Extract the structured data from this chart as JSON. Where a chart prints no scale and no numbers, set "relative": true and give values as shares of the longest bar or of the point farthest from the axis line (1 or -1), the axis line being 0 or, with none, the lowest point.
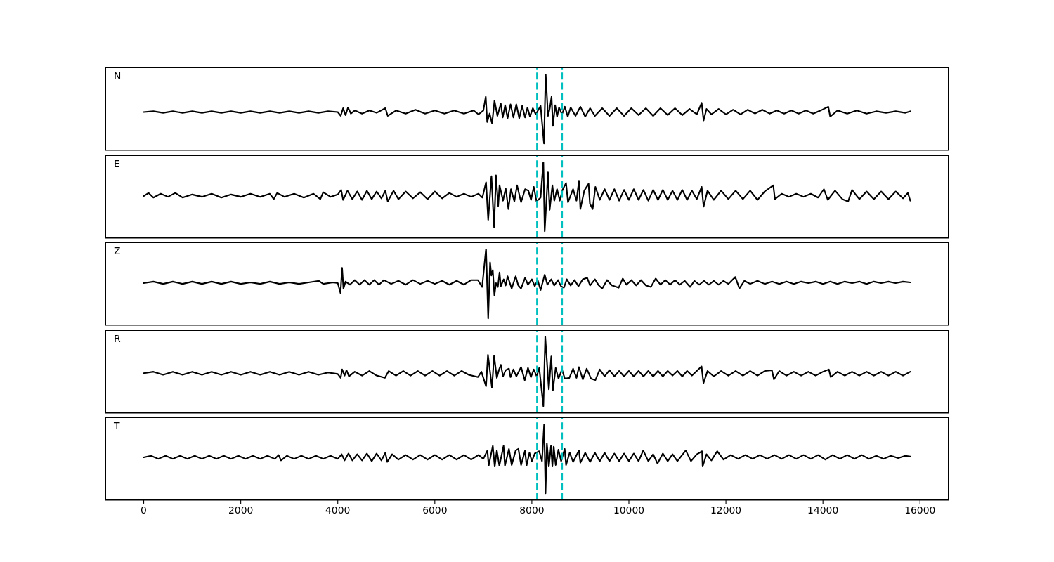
{
  "chart_data": [
    {
      "type": "line",
      "relative": true,
      "annotations": [
        "N"
      ],
      "xlim": [
        -790,
        16590
      ],
      "xticks": [
        0,
        2000,
        4000,
        6000,
        8000,
        10000,
        12000,
        14000,
        16000
      ],
      "tick_labels": false,
      "ref_lines": [
        {
          "axis": "x",
          "value": 8110,
          "color": "#00bfbf",
          "line_style": "dashed"
        },
        {
          "axis": "x",
          "value": 8620,
          "color": "#00bfbf",
          "line_style": "dashed"
        }
      ],
      "x": [
        0,
        200,
        400,
        600,
        800,
        1000,
        1200,
        1400,
        1600,
        1800,
        2000,
        2200,
        2400,
        2600,
        2800,
        3000,
        3200,
        3400,
        3600,
        3800,
        4000,
        4060,
        4110,
        4160,
        4210,
        4270,
        4350,
        4500,
        4650,
        4800,
        4980,
        5030,
        5200,
        5400,
        5600,
        5800,
        6000,
        6200,
        6400,
        6600,
        6800,
        6900,
        7000,
        7050,
        7080,
        7130,
        7180,
        7230,
        7290,
        7360,
        7400,
        7450,
        7500,
        7560,
        7620,
        7680,
        7740,
        7800,
        7860,
        7910,
        7960,
        8020,
        8080,
        8180,
        8250,
        8285,
        8333,
        8370,
        8406,
        8434,
        8480,
        8520,
        8560,
        8620,
        8680,
        8740,
        8800,
        8900,
        9000,
        9100,
        9200,
        9300,
        9450,
        9600,
        9750,
        9900,
        10050,
        10200,
        10350,
        10500,
        10650,
        10800,
        10950,
        11100,
        11250,
        11400,
        11500,
        11540,
        11600,
        11700,
        11850,
        12000,
        12150,
        12300,
        12450,
        12600,
        12750,
        12900,
        13050,
        13200,
        13350,
        13500,
        13650,
        13800,
        13950,
        14110,
        14150,
        14300,
        14500,
        14700,
        14900,
        15100,
        15300,
        15500,
        15700,
        15800
      ],
      "series": [
        {
          "color": "#000000",
          "values": [
            0.5,
            0.51,
            0.49,
            0.51,
            0.49,
            0.51,
            0.49,
            0.51,
            0.49,
            0.51,
            0.49,
            0.51,
            0.49,
            0.51,
            0.49,
            0.51,
            0.49,
            0.51,
            0.49,
            0.51,
            0.5,
            0.45,
            0.55,
            0.46,
            0.56,
            0.48,
            0.52,
            0.48,
            0.52,
            0.49,
            0.55,
            0.45,
            0.52,
            0.48,
            0.53,
            0.48,
            0.52,
            0.48,
            0.52,
            0.48,
            0.52,
            0.47,
            0.52,
            0.7,
            0.37,
            0.48,
            0.35,
            0.65,
            0.45,
            0.61,
            0.43,
            0.59,
            0.42,
            0.6,
            0.43,
            0.6,
            0.42,
            0.58,
            0.43,
            0.56,
            0.44,
            0.55,
            0.47,
            0.58,
            0.09,
            1,
            0.45,
            0.55,
            0.7,
            0.32,
            0.59,
            0.44,
            0.56,
            0.47,
            0.57,
            0.44,
            0.56,
            0.45,
            0.57,
            0.44,
            0.55,
            0.45,
            0.55,
            0.45,
            0.55,
            0.45,
            0.55,
            0.46,
            0.55,
            0.45,
            0.55,
            0.46,
            0.55,
            0.46,
            0.54,
            0.47,
            0.62,
            0.39,
            0.54,
            0.47,
            0.54,
            0.47,
            0.53,
            0.47,
            0.53,
            0.48,
            0.53,
            0.48,
            0.52,
            0.48,
            0.52,
            0.48,
            0.52,
            0.48,
            0.52,
            0.57,
            0.44,
            0.52,
            0.48,
            0.52,
            0.48,
            0.51,
            0.49,
            0.51,
            0.49,
            0.51
          ]
        }
      ]
    },
    {
      "type": "line",
      "relative": true,
      "annotations": [
        "E"
      ],
      "xlim": [
        -790,
        16590
      ],
      "xticks": [
        0,
        2000,
        4000,
        6000,
        8000,
        10000,
        12000,
        14000,
        16000
      ],
      "tick_labels": false,
      "ref_lines": [
        {
          "axis": "x",
          "value": 8110,
          "color": "#00bfbf",
          "line_style": "dashed"
        },
        {
          "axis": "x",
          "value": 8620,
          "color": "#00bfbf",
          "line_style": "dashed"
        }
      ],
      "x": [
        0,
        100,
        200,
        350,
        500,
        650,
        800,
        1000,
        1200,
        1400,
        1600,
        1800,
        2000,
        2200,
        2400,
        2600,
        2680,
        2750,
        2900,
        3100,
        3300,
        3500,
        3640,
        3700,
        3850,
        4000,
        4070,
        4110,
        4200,
        4300,
        4400,
        4500,
        4600,
        4700,
        4800,
        4900,
        4980,
        5030,
        5150,
        5250,
        5400,
        5550,
        5700,
        5850,
        6000,
        6150,
        6300,
        6450,
        6600,
        6750,
        6900,
        6980,
        7056,
        7100,
        7167,
        7222,
        7261,
        7306,
        7334,
        7406,
        7461,
        7517,
        7570,
        7640,
        7695,
        7778,
        7861,
        7927,
        7983,
        8040,
        8096,
        8180,
        8237,
        8265,
        8333,
        8367,
        8423,
        8463,
        8519,
        8576,
        8632,
        8705,
        8745,
        8850,
        8920,
        8971,
        9000,
        9080,
        9169,
        9197,
        9253,
        9310,
        9400,
        9500,
        9600,
        9700,
        9800,
        9900,
        10000,
        10100,
        10200,
        10300,
        10400,
        10500,
        10600,
        10700,
        10800,
        10900,
        11000,
        11100,
        11200,
        11300,
        11400,
        11500,
        11540,
        11620,
        11750,
        11900,
        12050,
        12200,
        12350,
        12500,
        12650,
        12800,
        12976,
        13010,
        13150,
        13300,
        13450,
        13600,
        13750,
        13900,
        14020,
        14100,
        14250,
        14400,
        14520,
        14600,
        14750,
        14900,
        15050,
        15200,
        15350,
        15500,
        15650,
        15750,
        15800
      ],
      "series": [
        {
          "color": "#000000",
          "values": [
            0.55,
            0.59,
            0.53,
            0.58,
            0.54,
            0.59,
            0.53,
            0.57,
            0.54,
            0.58,
            0.53,
            0.57,
            0.54,
            0.58,
            0.54,
            0.58,
            0.51,
            0.59,
            0.54,
            0.58,
            0.53,
            0.58,
            0.51,
            0.6,
            0.54,
            0.57,
            0.63,
            0.5,
            0.62,
            0.51,
            0.61,
            0.5,
            0.62,
            0.51,
            0.61,
            0.52,
            0.62,
            0.48,
            0.62,
            0.51,
            0.61,
            0.52,
            0.6,
            0.51,
            0.61,
            0.52,
            0.59,
            0.54,
            0.58,
            0.54,
            0.58,
            0.53,
            0.73,
            0.24,
            0.81,
            0.14,
            0.82,
            0.42,
            0.69,
            0.49,
            0.65,
            0.38,
            0.64,
            0.48,
            0.69,
            0.47,
            0.64,
            0.62,
            0.5,
            0.67,
            0.48,
            0.53,
            1,
            0.09,
            0.86,
            0.37,
            0.69,
            0.49,
            0.64,
            0.49,
            0.63,
            0.72,
            0.47,
            0.64,
            0.49,
            0.75,
            0.38,
            0.62,
            0.71,
            0.45,
            0.38,
            0.67,
            0.5,
            0.64,
            0.5,
            0.64,
            0.49,
            0.63,
            0.5,
            0.64,
            0.5,
            0.63,
            0.49,
            0.63,
            0.5,
            0.63,
            0.5,
            0.62,
            0.5,
            0.63,
            0.5,
            0.62,
            0.51,
            0.67,
            0.41,
            0.62,
            0.5,
            0.62,
            0.51,
            0.62,
            0.51,
            0.62,
            0.5,
            0.61,
            0.69,
            0.51,
            0.58,
            0.54,
            0.58,
            0.54,
            0.58,
            0.53,
            0.64,
            0.5,
            0.62,
            0.51,
            0.48,
            0.63,
            0.51,
            0.61,
            0.51,
            0.61,
            0.51,
            0.61,
            0.52,
            0.59,
            0.49
          ]
        }
      ]
    },
    {
      "type": "line",
      "relative": true,
      "annotations": [
        "Z"
      ],
      "xlim": [
        -790,
        16590
      ],
      "xticks": [
        0,
        2000,
        4000,
        6000,
        8000,
        10000,
        12000,
        14000,
        16000
      ],
      "tick_labels": false,
      "ref_lines": [
        {
          "axis": "x",
          "value": 8110,
          "color": "#00bfbf",
          "line_style": "dashed"
        },
        {
          "axis": "x",
          "value": 8620,
          "color": "#00bfbf",
          "line_style": "dashed"
        }
      ],
      "x": [
        0,
        200,
        400,
        600,
        800,
        1000,
        1200,
        1400,
        1600,
        1800,
        2000,
        2200,
        2400,
        2600,
        2800,
        3000,
        3200,
        3400,
        3611,
        3700,
        3900,
        4000,
        4056,
        4089,
        4117,
        4160,
        4250,
        4350,
        4450,
        4550,
        4650,
        4750,
        4850,
        4950,
        5100,
        5250,
        5400,
        5550,
        5700,
        5850,
        6000,
        6150,
        6300,
        6450,
        6600,
        6750,
        6889,
        6975,
        7056,
        7100,
        7139,
        7165,
        7195,
        7228,
        7261,
        7300,
        7334,
        7361,
        7420,
        7460,
        7500,
        7584,
        7667,
        7720,
        7778,
        7861,
        7920,
        8000,
        8060,
        8120,
        8180,
        8265,
        8320,
        8400,
        8460,
        8540,
        8600,
        8660,
        8720,
        8800,
        8880,
        8960,
        9050,
        9140,
        9200,
        9300,
        9380,
        9450,
        9550,
        9650,
        9789,
        9874,
        9950,
        10050,
        10150,
        10250,
        10350,
        10452,
        10552,
        10650,
        10750,
        10850,
        10950,
        11050,
        11150,
        11262,
        11350,
        11450,
        11550,
        11650,
        11750,
        11850,
        11950,
        12050,
        12193,
        12278,
        12380,
        12500,
        12650,
        12800,
        12950,
        13100,
        13250,
        13400,
        13550,
        13700,
        13850,
        14000,
        14150,
        14300,
        14450,
        14600,
        14750,
        14900,
        15050,
        15200,
        15350,
        15500,
        15650,
        15800
      ],
      "series": [
        {
          "color": "#000000",
          "values": [
            0.55,
            0.57,
            0.54,
            0.57,
            0.54,
            0.57,
            0.54,
            0.57,
            0.54,
            0.57,
            0.54,
            0.56,
            0.54,
            0.57,
            0.54,
            0.56,
            0.54,
            0.56,
            0.58,
            0.54,
            0.56,
            0.55,
            0.42,
            0.75,
            0.48,
            0.57,
            0.53,
            0.59,
            0.53,
            0.59,
            0.53,
            0.59,
            0.53,
            0.59,
            0.54,
            0.58,
            0.53,
            0.59,
            0.54,
            0.58,
            0.54,
            0.58,
            0.53,
            0.58,
            0.53,
            0.59,
            0.59,
            0.5,
            1,
            0.09,
            0.82,
            0.65,
            0.72,
            0.39,
            0.55,
            0.5,
            0.69,
            0.51,
            0.6,
            0.52,
            0.64,
            0.48,
            0.64,
            0.52,
            0.48,
            0.62,
            0.53,
            0.6,
            0.51,
            0.59,
            0.46,
            0.66,
            0.53,
            0.6,
            0.52,
            0.59,
            0.51,
            0.49,
            0.6,
            0.52,
            0.59,
            0.51,
            0.6,
            0.62,
            0.52,
            0.6,
            0.52,
            0.48,
            0.59,
            0.52,
            0.49,
            0.61,
            0.53,
            0.59,
            0.52,
            0.59,
            0.52,
            0.5,
            0.61,
            0.53,
            0.59,
            0.53,
            0.59,
            0.53,
            0.58,
            0.5,
            0.58,
            0.53,
            0.58,
            0.53,
            0.58,
            0.53,
            0.58,
            0.54,
            0.63,
            0.48,
            0.58,
            0.54,
            0.58,
            0.54,
            0.57,
            0.54,
            0.57,
            0.54,
            0.57,
            0.55,
            0.57,
            0.54,
            0.57,
            0.54,
            0.57,
            0.55,
            0.57,
            0.54,
            0.57,
            0.55,
            0.57,
            0.55,
            0.57,
            0.56
          ]
        }
      ]
    },
    {
      "type": "line",
      "relative": true,
      "annotations": [
        "R"
      ],
      "xlim": [
        -790,
        16590
      ],
      "xticks": [
        0,
        2000,
        4000,
        6000,
        8000,
        10000,
        12000,
        14000,
        16000
      ],
      "tick_labels": false,
      "ref_lines": [
        {
          "axis": "x",
          "value": 8110,
          "color": "#00bfbf",
          "line_style": "dashed"
        },
        {
          "axis": "x",
          "value": 8620,
          "color": "#00bfbf",
          "line_style": "dashed"
        }
      ],
      "x": [
        0,
        200,
        400,
        600,
        800,
        1000,
        1200,
        1400,
        1600,
        1800,
        2000,
        2200,
        2400,
        2600,
        2800,
        3000,
        3200,
        3400,
        3600,
        3800,
        4000,
        4060,
        4090,
        4140,
        4180,
        4230,
        4350,
        4500,
        4650,
        4800,
        4972,
        5050,
        5200,
        5350,
        5500,
        5650,
        5800,
        5950,
        6100,
        6250,
        6400,
        6550,
        6700,
        6889,
        6960,
        7056,
        7095,
        7140,
        7178,
        7222,
        7278,
        7320,
        7361,
        7406,
        7460,
        7528,
        7560,
        7620,
        7680,
        7778,
        7853,
        7920,
        7980,
        8040,
        8100,
        8152,
        8237,
        8276,
        8350,
        8400,
        8434,
        8491,
        8550,
        8620,
        8680,
        8773,
        8850,
        8920,
        8970,
        9050,
        9130,
        9220,
        9309,
        9400,
        9500,
        9600,
        9700,
        9800,
        9900,
        10000,
        10100,
        10200,
        10300,
        10400,
        10500,
        10600,
        10700,
        10800,
        10900,
        11000,
        11100,
        11200,
        11300,
        11400,
        11498,
        11537,
        11620,
        11750,
        11900,
        12050,
        12200,
        12350,
        12500,
        12650,
        12800,
        12948,
        12990,
        13100,
        13250,
        13400,
        13550,
        13700,
        13850,
        14000,
        14122,
        14160,
        14300,
        14450,
        14600,
        14750,
        14900,
        15050,
        15200,
        15350,
        15500,
        15650,
        15800
      ],
      "series": [
        {
          "color": "#000000",
          "values": [
            0.52,
            0.54,
            0.5,
            0.54,
            0.5,
            0.54,
            0.5,
            0.54,
            0.5,
            0.54,
            0.5,
            0.54,
            0.5,
            0.54,
            0.5,
            0.54,
            0.5,
            0.54,
            0.5,
            0.53,
            0.51,
            0.46,
            0.57,
            0.49,
            0.56,
            0.48,
            0.54,
            0.49,
            0.55,
            0.49,
            0.46,
            0.55,
            0.49,
            0.55,
            0.49,
            0.55,
            0.49,
            0.55,
            0.49,
            0.55,
            0.49,
            0.55,
            0.5,
            0.47,
            0.54,
            0.35,
            0.76,
            0.53,
            0.33,
            0.75,
            0.46,
            0.56,
            0.63,
            0.48,
            0.56,
            0.58,
            0.47,
            0.57,
            0.48,
            0.6,
            0.43,
            0.59,
            0.47,
            0.57,
            0.48,
            0.59,
            0.09,
            1,
            0.31,
            0.74,
            0.3,
            0.59,
            0.45,
            0.57,
            0.45,
            0.46,
            0.58,
            0.46,
            0.6,
            0.44,
            0.58,
            0.45,
            0.43,
            0.57,
            0.48,
            0.56,
            0.48,
            0.55,
            0.48,
            0.55,
            0.48,
            0.55,
            0.48,
            0.55,
            0.48,
            0.55,
            0.48,
            0.55,
            0.49,
            0.55,
            0.48,
            0.55,
            0.49,
            0.55,
            0.61,
            0.39,
            0.55,
            0.48,
            0.55,
            0.49,
            0.55,
            0.49,
            0.55,
            0.49,
            0.55,
            0.56,
            0.44,
            0.55,
            0.49,
            0.54,
            0.49,
            0.54,
            0.49,
            0.54,
            0.57,
            0.47,
            0.54,
            0.49,
            0.54,
            0.49,
            0.54,
            0.49,
            0.54,
            0.49,
            0.54,
            0.49,
            0.54
          ]
        }
      ]
    },
    {
      "type": "line",
      "relative": true,
      "annotations": [
        "T"
      ],
      "xlim": [
        -790,
        16590
      ],
      "xticks": [
        0,
        2000,
        4000,
        6000,
        8000,
        10000,
        12000,
        14000,
        16000
      ],
      "tick_labels": "x",
      "ref_lines": [
        {
          "axis": "x",
          "value": 8110,
          "color": "#00bfbf",
          "line_style": "dashed"
        },
        {
          "axis": "x",
          "value": 8620,
          "color": "#00bfbf",
          "line_style": "dashed"
        }
      ],
      "x": [
        0,
        150,
        300,
        450,
        600,
        750,
        900,
        1050,
        1200,
        1350,
        1500,
        1650,
        1800,
        1950,
        2100,
        2250,
        2400,
        2550,
        2700,
        2780,
        2830,
        2950,
        3100,
        3250,
        3400,
        3550,
        3700,
        3850,
        4000,
        4080,
        4140,
        4220,
        4300,
        4400,
        4500,
        4600,
        4700,
        4800,
        4900,
        4980,
        5020,
        5120,
        5250,
        5400,
        5550,
        5700,
        5850,
        6000,
        6150,
        6300,
        6450,
        6600,
        6750,
        6900,
        7000,
        7084,
        7110,
        7195,
        7235,
        7278,
        7330,
        7417,
        7445,
        7528,
        7584,
        7667,
        7723,
        7778,
        7861,
        7890,
        7950,
        8000,
        8060,
        8152,
        8209,
        8254,
        8282,
        8310,
        8350,
        8395,
        8423,
        8451,
        8491,
        8547,
        8604,
        8677,
        8705,
        8780,
        8850,
        8970,
        9000,
        9100,
        9200,
        9300,
        9400,
        9500,
        9600,
        9700,
        9800,
        9900,
        10000,
        10100,
        10200,
        10296,
        10400,
        10500,
        10590,
        10700,
        10800,
        10900,
        11000,
        11172,
        11280,
        11400,
        11509,
        11520,
        11600,
        11700,
        11820,
        11950,
        12100,
        12250,
        12400,
        12550,
        12700,
        12850,
        13000,
        13150,
        13300,
        13450,
        13600,
        13750,
        13900,
        14050,
        14200,
        14350,
        14500,
        14650,
        14800,
        14950,
        15100,
        15250,
        15400,
        15550,
        15700,
        15800
      ],
      "series": [
        {
          "color": "#000000",
          "values": [
            0.56,
            0.58,
            0.54,
            0.58,
            0.54,
            0.58,
            0.54,
            0.58,
            0.54,
            0.58,
            0.54,
            0.58,
            0.54,
            0.58,
            0.54,
            0.58,
            0.54,
            0.58,
            0.54,
            0.59,
            0.52,
            0.58,
            0.54,
            0.58,
            0.54,
            0.58,
            0.54,
            0.58,
            0.54,
            0.6,
            0.52,
            0.61,
            0.52,
            0.6,
            0.52,
            0.61,
            0.51,
            0.61,
            0.52,
            0.62,
            0.5,
            0.6,
            0.53,
            0.59,
            0.53,
            0.59,
            0.53,
            0.59,
            0.53,
            0.59,
            0.53,
            0.59,
            0.53,
            0.59,
            0.54,
            0.65,
            0.45,
            0.71,
            0.44,
            0.65,
            0.45,
            0.71,
            0.45,
            0.67,
            0.46,
            0.65,
            0.67,
            0.46,
            0.65,
            0.45,
            0.62,
            0.51,
            0.61,
            0.64,
            0.51,
            1,
            0.09,
            0.74,
            0.44,
            0.71,
            0.44,
            0.7,
            0.46,
            0.66,
            0.51,
            0.67,
            0.46,
            0.62,
            0.5,
            0.65,
            0.49,
            0.62,
            0.5,
            0.62,
            0.51,
            0.62,
            0.51,
            0.61,
            0.51,
            0.61,
            0.51,
            0.61,
            0.51,
            0.65,
            0.51,
            0.6,
            0.48,
            0.61,
            0.51,
            0.6,
            0.51,
            0.65,
            0.51,
            0.6,
            0.64,
            0.44,
            0.6,
            0.52,
            0.64,
            0.53,
            0.59,
            0.54,
            0.59,
            0.54,
            0.59,
            0.54,
            0.59,
            0.54,
            0.59,
            0.54,
            0.59,
            0.54,
            0.59,
            0.53,
            0.59,
            0.54,
            0.59,
            0.54,
            0.59,
            0.54,
            0.58,
            0.54,
            0.58,
            0.55,
            0.58,
            0.57
          ]
        }
      ]
    }
  ]
}
